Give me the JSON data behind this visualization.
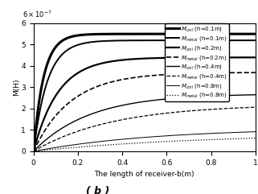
{
  "title": "( b )",
  "xlabel": "The length of receiver-b(m)",
  "ylabel": "M(H)",
  "xmin": 0,
  "xmax": 1.0,
  "ymin": 0,
  "ymax": 6e-07,
  "yticks": [
    0,
    1,
    2,
    3,
    4,
    5,
    6
  ],
  "xticks": [
    0,
    0.2,
    0.4,
    0.6,
    0.8,
    1.0
  ],
  "xtick_labels": [
    "0",
    "0.2",
    "0.4",
    "0.6",
    "0.8",
    "1"
  ],
  "legend_entries": [
    {
      "label": "$M_{coil}$ (h=0.1m)"
    },
    {
      "label": "$M_{metal}$ (h=0.1m)"
    },
    {
      "label": "$M_{coil}$ (h=0.2m)"
    },
    {
      "label": "$M_{metal}$ (h=0.2m)"
    },
    {
      "label": "$M_{coil}$ (h=0.4m)"
    },
    {
      "label": "$M_{metal}$ (h=0.4m)"
    },
    {
      "label": "$M_{coil}$ (h=0.8m)"
    },
    {
      "label": "$M_{metal}$ (h=0.8m)"
    }
  ],
  "curves": [
    {
      "M_max": 5.5e-07,
      "rate": 22,
      "linestyle": "-",
      "linewidth": 2.2
    },
    {
      "M_max": 5.2e-07,
      "rate": 16,
      "linestyle": "-",
      "linewidth": 1.4
    },
    {
      "M_max": 4.4e-07,
      "rate": 9,
      "linestyle": "-",
      "linewidth": 1.6
    },
    {
      "M_max": 3.7e-07,
      "rate": 6,
      "linestyle": "--",
      "linewidth": 1.2
    },
    {
      "M_max": 2.7e-07,
      "rate": 4,
      "linestyle": "-",
      "linewidth": 1.0
    },
    {
      "M_max": 2.2e-07,
      "rate": 2.8,
      "linestyle": "--",
      "linewidth": 0.9
    },
    {
      "M_max": 1.1e-07,
      "rate": 1.8,
      "linestyle": "-",
      "linewidth": 0.7
    },
    {
      "M_max": 8.5e-08,
      "rate": 1.3,
      "linestyle": ":",
      "linewidth": 0.9
    }
  ],
  "fig_width": 3.21,
  "fig_height": 2.41,
  "dpi": 100
}
